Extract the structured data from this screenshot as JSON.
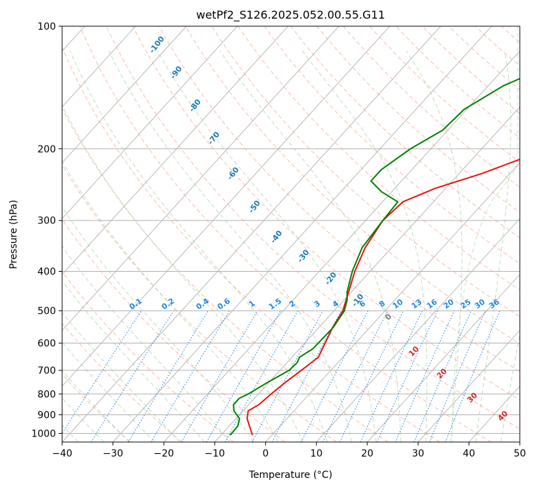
{
  "chart_data": {
    "type": "line",
    "title": "wetPf2_S126.2025.052.00.55.G11",
    "xlabel": "Temperature (°C)",
    "ylabel": "Pressure (hPa)",
    "xlim": [
      -40,
      50
    ],
    "ylim": [
      1050,
      100
    ],
    "y_scale": "log",
    "grid": true,
    "x_ticks": [
      -40,
      -30,
      -20,
      -10,
      0,
      10,
      20,
      30,
      40,
      50
    ],
    "y_ticks": [
      100,
      200,
      300,
      400,
      500,
      600,
      700,
      800,
      900,
      1000
    ],
    "series": [
      {
        "color": "#e8120c",
        "points": [
          {
            "p": 1010,
            "t": -3.8
          },
          {
            "p": 960,
            "t": -6.0
          },
          {
            "p": 920,
            "t": -7.8
          },
          {
            "p": 880,
            "t": -9.0
          },
          {
            "p": 850,
            "t": -8.0
          },
          {
            "p": 800,
            "t": -7.5
          },
          {
            "p": 750,
            "t": -6.8
          },
          {
            "p": 700,
            "t": -5.8
          },
          {
            "p": 650,
            "t": -4.8
          },
          {
            "p": 600,
            "t": -6.0
          },
          {
            "p": 550,
            "t": -7.3
          },
          {
            "p": 500,
            "t": -8.3
          },
          {
            "p": 450,
            "t": -10.5
          },
          {
            "p": 400,
            "t": -13.0
          },
          {
            "p": 350,
            "t": -15.2
          },
          {
            "p": 300,
            "t": -16.6
          },
          {
            "p": 270,
            "t": -16.0
          },
          {
            "p": 250,
            "t": -12.0
          },
          {
            "p": 230,
            "t": -5.5
          },
          {
            "p": 200,
            "t": 3.0
          },
          {
            "p": 180,
            "t": 10.0
          },
          {
            "p": 160,
            "t": 16.0
          },
          {
            "p": 140,
            "t": 22.0
          },
          {
            "p": 120,
            "t": 28.0
          },
          {
            "p": 100,
            "t": 33.0
          }
        ]
      },
      {
        "color": "#008000",
        "points": [
          {
            "p": 1010,
            "t": -8.2
          },
          {
            "p": 960,
            "t": -8.3
          },
          {
            "p": 920,
            "t": -9.3
          },
          {
            "p": 880,
            "t": -11.8
          },
          {
            "p": 850,
            "t": -13.0
          },
          {
            "p": 820,
            "t": -13.0
          },
          {
            "p": 800,
            "t": -12.0
          },
          {
            "p": 750,
            "t": -10.3
          },
          {
            "p": 700,
            "t": -8.2
          },
          {
            "p": 670,
            "t": -8.0
          },
          {
            "p": 650,
            "t": -8.5
          },
          {
            "p": 620,
            "t": -7.4
          },
          {
            "p": 550,
            "t": -7.2
          },
          {
            "p": 500,
            "t": -8.0
          },
          {
            "p": 470,
            "t": -9.4
          },
          {
            "p": 450,
            "t": -10.8
          },
          {
            "p": 400,
            "t": -13.5
          },
          {
            "p": 350,
            "t": -15.8
          },
          {
            "p": 300,
            "t": -16.6
          },
          {
            "p": 270,
            "t": -17.0
          },
          {
            "p": 255,
            "t": -22.0
          },
          {
            "p": 240,
            "t": -26.0
          },
          {
            "p": 225,
            "t": -26.0
          },
          {
            "p": 200,
            "t": -24.0
          },
          {
            "p": 180,
            "t": -21.0
          },
          {
            "p": 160,
            "t": -20.5
          },
          {
            "p": 140,
            "t": -17.0
          },
          {
            "p": 120,
            "t": -9.5
          },
          {
            "p": 100,
            "t": -4.0
          }
        ]
      }
    ],
    "dry_adiabat_labels": [
      {
        "text": "-100",
        "p": 112,
        "t": -21.0
      },
      {
        "text": "-90",
        "p": 131,
        "t": -17.2
      },
      {
        "text": "-80",
        "p": 158,
        "t": -13.5
      },
      {
        "text": "-70",
        "p": 190,
        "t": -9.8
      },
      {
        "text": "-60",
        "p": 232,
        "t": -6.0
      },
      {
        "text": "-50",
        "p": 280,
        "t": -1.8
      },
      {
        "text": "-40",
        "p": 332,
        "t": 2.5
      },
      {
        "text": "-30",
        "p": 370,
        "t": 7.8
      },
      {
        "text": "-20",
        "p": 420,
        "t": 13.2
      },
      {
        "text": "-10",
        "p": 475,
        "t": 18.5
      }
    ],
    "wet_adiabat_labels": [
      {
        "text": "0",
        "p": 523,
        "t": 24.5
      },
      {
        "text": "10",
        "p": 635,
        "t": 29.5
      },
      {
        "text": "20",
        "p": 720,
        "t": 35.0
      },
      {
        "text": "30",
        "p": 825,
        "t": 41.0
      },
      {
        "text": "40",
        "p": 915,
        "t": 47.0
      }
    ],
    "mixing_ratio_labels": [
      "0.1",
      "0.2",
      "0.4",
      "0.6",
      "1",
      "1.5",
      "2",
      "3",
      "4",
      "6",
      "8",
      "10",
      "13",
      "16",
      "20",
      "25",
      "30",
      "36"
    ]
  }
}
